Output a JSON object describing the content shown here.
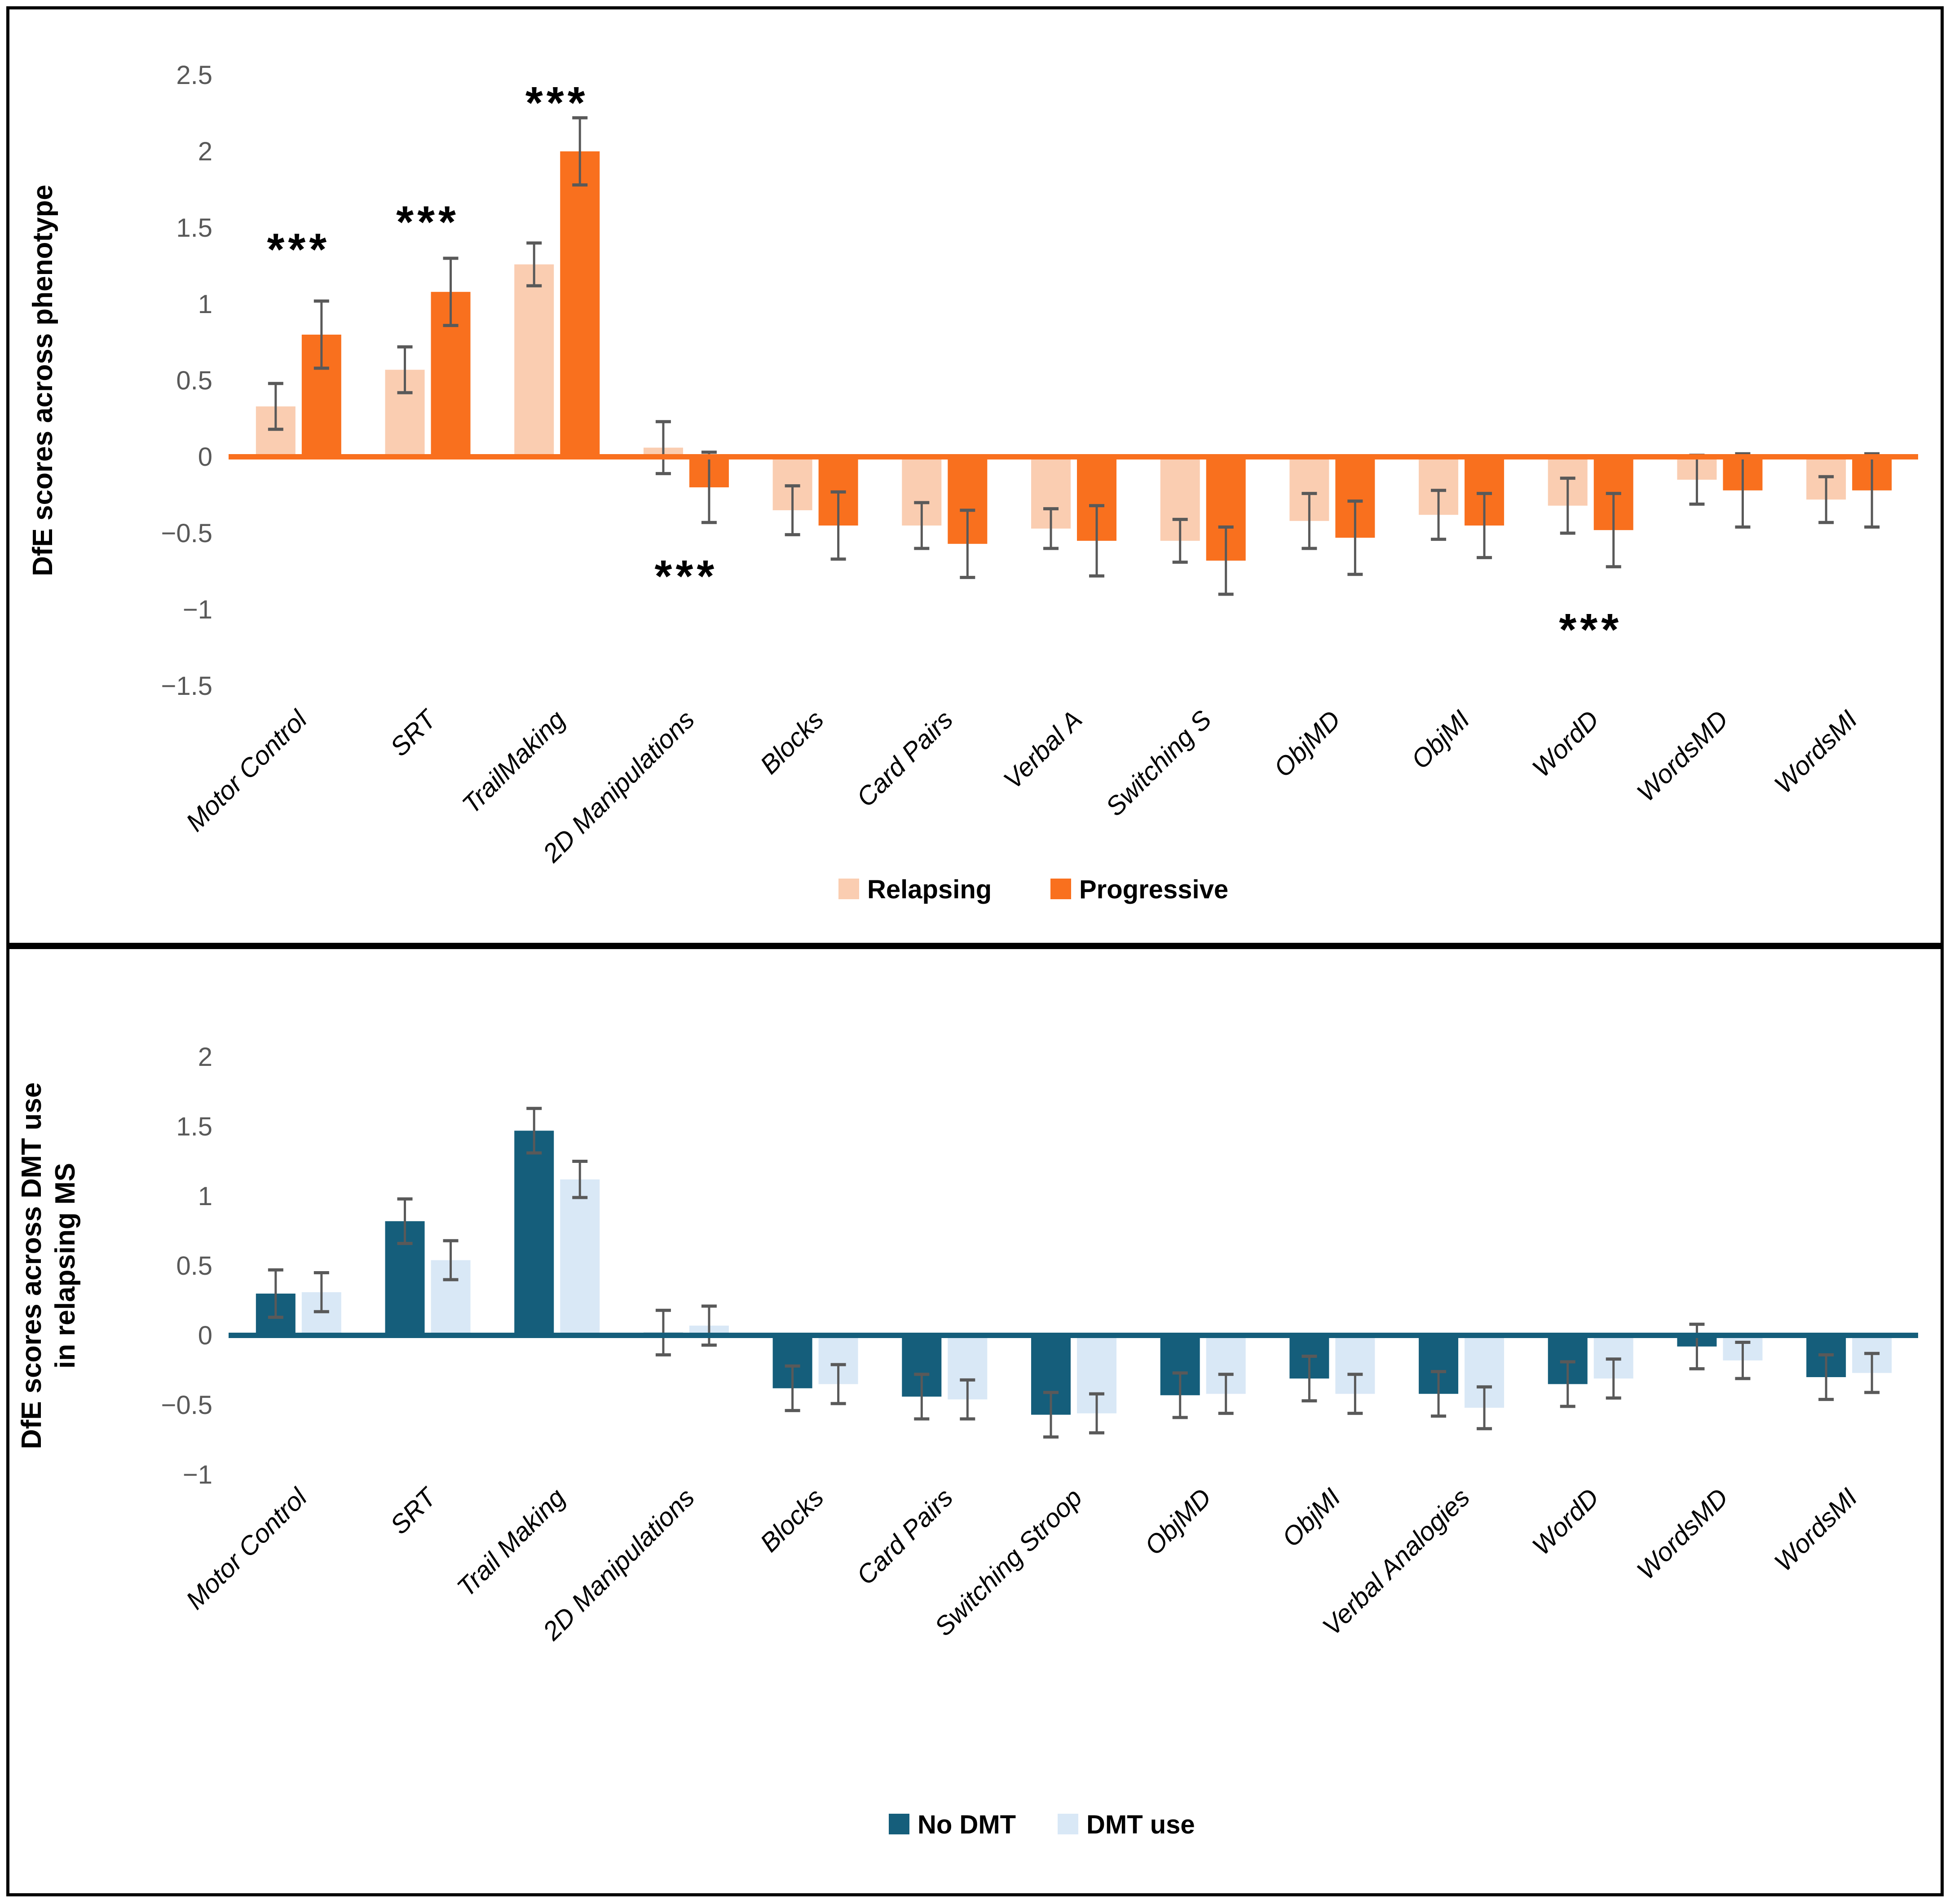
{
  "figure": {
    "background": "#ffffff",
    "border_color": "#000000"
  },
  "chart_data": [
    {
      "type": "bar",
      "panel": "top",
      "title": "",
      "ylabel_lines": [
        "DfE scores across phenotype"
      ],
      "ylim": [
        -1.5,
        2.5
      ],
      "yticks": [
        {
          "v": 2.5,
          "label": "2.5"
        },
        {
          "v": 2,
          "label": "2"
        },
        {
          "v": 1.5,
          "label": "1.5"
        },
        {
          "v": 1,
          "label": "1"
        },
        {
          "v": 0.5,
          "label": "0.5"
        },
        {
          "v": 0,
          "label": "0"
        },
        {
          "v": -0.5,
          "label": "−0.5"
        },
        {
          "v": -1,
          "label": "−1"
        },
        {
          "v": -1.5,
          "label": "−1.5"
        }
      ],
      "grid": false,
      "legend_position": "bottom",
      "axis_color": "#F9701E",
      "error_color": "#595959",
      "tick_color": "#595959",
      "categories": [
        "Motor Control",
        "SRT",
        "TrailMaking",
        "2D Manipulations",
        "Blocks",
        "Card Pairs",
        "Verbal A",
        "Switching S",
        "ObjMD",
        "ObjMI",
        "WordD",
        "WordsMD",
        "WordsMI"
      ],
      "series": [
        {
          "name": "Relapsing",
          "color": "#FACDB1",
          "values": [
            0.33,
            0.57,
            1.26,
            0.06,
            -0.35,
            -0.45,
            -0.47,
            -0.55,
            -0.42,
            -0.38,
            -0.32,
            -0.15,
            -0.28
          ],
          "errors": [
            0.15,
            0.15,
            0.14,
            0.17,
            0.16,
            0.15,
            0.13,
            0.14,
            0.18,
            0.16,
            0.18,
            0.16,
            0.15
          ]
        },
        {
          "name": "Progressive",
          "color": "#F9701E",
          "values": [
            0.8,
            1.08,
            2.0,
            -0.2,
            -0.45,
            -0.57,
            -0.55,
            -0.68,
            -0.53,
            -0.45,
            -0.48,
            -0.22,
            -0.22
          ],
          "errors": [
            0.22,
            0.22,
            0.22,
            0.23,
            0.22,
            0.22,
            0.23,
            0.22,
            0.24,
            0.21,
            0.24,
            0.24,
            0.24
          ]
        }
      ],
      "annotations": [
        {
          "category": "Motor Control",
          "text": "***",
          "y": 1.36
        },
        {
          "category": "SRT",
          "text": "***",
          "y": 1.54
        },
        {
          "category": "TrailMaking",
          "text": "***",
          "y": 2.32
        },
        {
          "category": "2D Manipulations",
          "text": "***",
          "y": -0.78
        },
        {
          "category": "WordD",
          "text": "***",
          "y": -1.13
        }
      ]
    },
    {
      "type": "bar",
      "panel": "bottom",
      "title": "",
      "ylabel_lines": [
        "DfE scores across DMT use",
        "in relapsing MS"
      ],
      "ylim": [
        -1,
        2
      ],
      "yticks": [
        {
          "v": 2,
          "label": "2"
        },
        {
          "v": 1.5,
          "label": "1.5"
        },
        {
          "v": 1,
          "label": "1"
        },
        {
          "v": 0.5,
          "label": "0.5"
        },
        {
          "v": 0,
          "label": "0"
        },
        {
          "v": -0.5,
          "label": "−0.5"
        },
        {
          "v": -1,
          "label": "−1"
        }
      ],
      "grid": false,
      "legend_position": "bottom",
      "axis_color": "#155E7B",
      "error_color": "#595959",
      "tick_color": "#595959",
      "categories": [
        "Motor Control",
        "SRT",
        "Trail Making",
        "2D Manipulations",
        "Blocks",
        "Card Pairs",
        "Switching Stroop",
        "ObjMD",
        "ObjMI",
        "Verbal Analogies",
        "WordD",
        "WordsMD",
        "WordsMI"
      ],
      "series": [
        {
          "name": "No DMT",
          "color": "#155E7B",
          "values": [
            0.3,
            0.82,
            1.47,
            0.02,
            -0.38,
            -0.44,
            -0.57,
            -0.43,
            -0.31,
            -0.42,
            -0.35,
            -0.08,
            -0.3
          ],
          "errors": [
            0.17,
            0.16,
            0.16,
            0.16,
            0.16,
            0.16,
            0.16,
            0.16,
            0.16,
            0.16,
            0.16,
            0.16,
            0.16
          ]
        },
        {
          "name": "DMT use",
          "color": "#D9E8F6",
          "values": [
            0.31,
            0.54,
            1.12,
            0.07,
            -0.35,
            -0.46,
            -0.56,
            -0.42,
            -0.42,
            -0.52,
            -0.31,
            -0.18,
            -0.27
          ],
          "errors": [
            0.14,
            0.14,
            0.13,
            0.14,
            0.14,
            0.14,
            0.14,
            0.14,
            0.14,
            0.15,
            0.14,
            0.13,
            0.14
          ]
        }
      ],
      "annotations": []
    }
  ]
}
